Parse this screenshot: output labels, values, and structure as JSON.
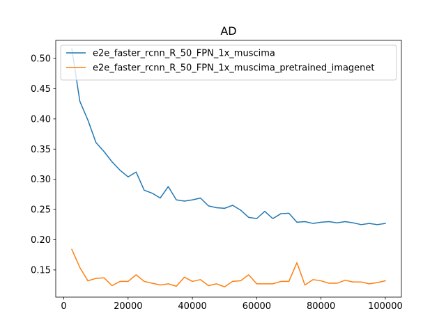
{
  "chart_data": {
    "type": "line",
    "title": "AD",
    "xlabel": "",
    "ylabel": "",
    "xlim": [
      -2500,
      105000
    ],
    "ylim": [
      0.105,
      0.53
    ],
    "x_ticks": [
      0,
      20000,
      40000,
      60000,
      80000,
      100000
    ],
    "x_tick_labels": [
      "0",
      "20000",
      "40000",
      "60000",
      "80000",
      "100000"
    ],
    "y_ticks": [
      0.15,
      0.2,
      0.25,
      0.3,
      0.35,
      0.4,
      0.45,
      0.5
    ],
    "y_tick_labels": [
      "0.15",
      "0.20",
      "0.25",
      "0.30",
      "0.35",
      "0.40",
      "0.45",
      "0.50"
    ],
    "grid": false,
    "legend_position": "top-left",
    "series": [
      {
        "name": "e2e_faster_rcnn_R_50_FPN_1x_muscima",
        "color": "#1f77b4",
        "x": [
          2500,
          5000,
          7500,
          10000,
          12500,
          15000,
          17500,
          20000,
          22500,
          25000,
          27500,
          30000,
          32500,
          35000,
          37500,
          40000,
          42500,
          45000,
          47500,
          50000,
          52500,
          55000,
          57500,
          60000,
          62500,
          65000,
          67500,
          70000,
          72500,
          75000,
          77500,
          80000,
          82500,
          85000,
          87500,
          90000,
          92500,
          95000,
          97500,
          100000
        ],
        "y": [
          0.516,
          0.429,
          0.398,
          0.361,
          0.346,
          0.329,
          0.315,
          0.304,
          0.312,
          0.282,
          0.277,
          0.269,
          0.288,
          0.266,
          0.264,
          0.266,
          0.269,
          0.256,
          0.253,
          0.252,
          0.257,
          0.249,
          0.237,
          0.235,
          0.247,
          0.235,
          0.243,
          0.244,
          0.229,
          0.23,
          0.227,
          0.229,
          0.23,
          0.228,
          0.23,
          0.228,
          0.225,
          0.227,
          0.225,
          0.227
        ]
      },
      {
        "name": "e2e_faster_rcnn_R_50_FPN_1x_muscima_pretrained_imagenet",
        "color": "#ff7f0e",
        "x": [
          2500,
          5000,
          7500,
          10000,
          12500,
          15000,
          17500,
          20000,
          22500,
          25000,
          27500,
          30000,
          32500,
          35000,
          37500,
          40000,
          42500,
          45000,
          47500,
          50000,
          52500,
          55000,
          57500,
          60000,
          62500,
          65000,
          67500,
          70000,
          72500,
          75000,
          77500,
          80000,
          82500,
          85000,
          87500,
          90000,
          92500,
          95000,
          97500,
          100000
        ],
        "y": [
          0.184,
          0.154,
          0.132,
          0.136,
          0.137,
          0.124,
          0.131,
          0.131,
          0.142,
          0.131,
          0.128,
          0.125,
          0.127,
          0.123,
          0.138,
          0.131,
          0.134,
          0.124,
          0.127,
          0.122,
          0.131,
          0.132,
          0.142,
          0.127,
          0.127,
          0.127,
          0.131,
          0.131,
          0.162,
          0.125,
          0.134,
          0.132,
          0.128,
          0.128,
          0.133,
          0.13,
          0.13,
          0.127,
          0.129,
          0.132
        ]
      }
    ]
  }
}
